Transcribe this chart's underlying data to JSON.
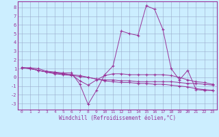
{
  "xlabel": "Windchill (Refroidissement éolien,°C)",
  "bg_color": "#cceeff",
  "line_color": "#993399",
  "grid_color": "#99aacc",
  "x_ticks": [
    0,
    1,
    2,
    3,
    4,
    5,
    6,
    7,
    8,
    9,
    10,
    11,
    12,
    13,
    14,
    15,
    16,
    17,
    18,
    19,
    20,
    21,
    22,
    23
  ],
  "y_ticks": [
    -3,
    -2,
    -1,
    0,
    1,
    2,
    3,
    4,
    5,
    6,
    7,
    8
  ],
  "xlim": [
    -0.5,
    23.5
  ],
  "ylim": [
    -3.7,
    8.7
  ],
  "series": [
    [
      1.1,
      1.1,
      1.0,
      0.7,
      0.6,
      0.5,
      0.5,
      -0.8,
      -3.1,
      -1.5,
      0.3,
      1.3,
      5.3,
      5.0,
      4.8,
      8.2,
      7.8,
      5.5,
      1.0,
      -0.3,
      0.8,
      -1.4,
      -1.5,
      -1.5
    ],
    [
      1.1,
      1.0,
      0.8,
      0.6,
      0.5,
      0.4,
      0.3,
      -0.4,
      -0.9,
      -0.3,
      0.2,
      0.4,
      0.4,
      0.3,
      0.3,
      0.3,
      0.3,
      0.3,
      0.2,
      0.0,
      -0.3,
      -0.5,
      -0.6,
      -0.8
    ],
    [
      1.1,
      1.0,
      0.8,
      0.6,
      0.5,
      0.4,
      0.3,
      0.2,
      0.0,
      -0.2,
      -0.3,
      -0.3,
      -0.4,
      -0.4,
      -0.5,
      -0.5,
      -0.5,
      -0.5,
      -0.5,
      -0.6,
      -0.7,
      -0.7,
      -0.8,
      -0.9
    ],
    [
      1.1,
      1.0,
      0.8,
      0.6,
      0.4,
      0.3,
      0.2,
      0.1,
      0.0,
      -0.2,
      -0.4,
      -0.5,
      -0.6,
      -0.6,
      -0.7,
      -0.7,
      -0.8,
      -0.8,
      -0.9,
      -1.0,
      -1.1,
      -1.3,
      -1.4,
      -1.5
    ]
  ]
}
